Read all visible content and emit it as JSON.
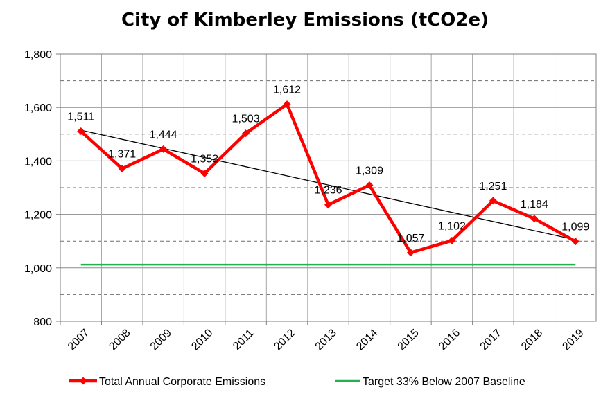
{
  "chart_data": {
    "type": "line",
    "title": "City of Kimberley Emissions (tCO2e)",
    "categories": [
      "2007",
      "2008",
      "2009",
      "2010",
      "2011",
      "2012",
      "2013",
      "2014",
      "2015",
      "2016",
      "2017",
      "2018",
      "2019"
    ],
    "series": [
      {
        "name": "Total Annual Corporate Emissions",
        "values": [
          1511,
          1371,
          1444,
          1353,
          1503,
          1612,
          1236,
          1309,
          1057,
          1102,
          1251,
          1184,
          1099
        ],
        "labels": [
          "1,511",
          "1,371",
          "1,444",
          "1,353",
          "1,503",
          "1,612",
          "1,236",
          "1,309",
          "1,057",
          "1,102",
          "1,251",
          "1,184",
          "1,099"
        ],
        "color": "#ff0000",
        "marker": "diamond"
      },
      {
        "name": "Target 33% Below 2007 Baseline",
        "values": [
          1012,
          1012,
          1012,
          1012,
          1012,
          1012,
          1012,
          1012,
          1012,
          1012,
          1012,
          1012,
          1012
        ],
        "color": "#22b14c"
      }
    ],
    "trendline": {
      "from": 1515,
      "to": 1105,
      "color": "#000000"
    },
    "ylim": [
      800,
      1800
    ],
    "yticks": [
      "800",
      "1,000",
      "1,200",
      "1,400",
      "1,600",
      "1,800"
    ],
    "ytick_values": [
      800,
      1000,
      1200,
      1400,
      1600,
      1800
    ],
    "grid": {
      "major": "solid",
      "minor": "dashed"
    },
    "legend": "bottom"
  }
}
